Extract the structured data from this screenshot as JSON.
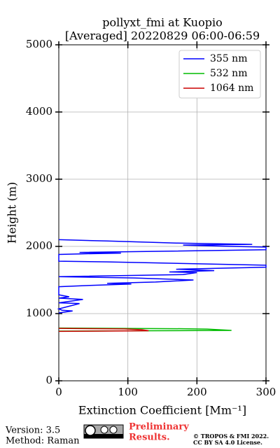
{
  "chart_data": {
    "type": "line",
    "title": "pollyxt_fmi at Kuopio",
    "subtitle": "[Averaged] 20220829 06:00-06:59",
    "xlabel": "Extinction Coefficient [Mm⁻¹]",
    "ylabel": "Height (m)",
    "xlim": [
      0,
      300
    ],
    "xticks": [
      0,
      100,
      200,
      300
    ],
    "ylim": [
      0,
      5000
    ],
    "yticks": [
      0,
      1000,
      2000,
      3000,
      4000,
      5000
    ],
    "grid": true,
    "legend": "upper right",
    "series": [
      {
        "name": "355 nm",
        "color": "#0000ff",
        "x": [
          0,
          20,
          5,
          0,
          30,
          0,
          35,
          0,
          15,
          0,
          0,
          45,
          105,
          70,
          140,
          195,
          110,
          0,
          180,
          200,
          160,
          225,
          170,
          300,
          300,
          70,
          0,
          0,
          35,
          90,
          30,
          300,
          300,
          250,
          180,
          280,
          170,
          70,
          0
        ],
        "y": [
          1010,
          1040,
          1050,
          1070,
          1150,
          1160,
          1210,
          1230,
          1250,
          1280,
          1400,
          1420,
          1440,
          1450,
          1470,
          1500,
          1530,
          1550,
          1580,
          1610,
          1620,
          1640,
          1660,
          1690,
          1720,
          1770,
          1780,
          1880,
          1890,
          1900,
          1910,
          1950,
          1990,
          2000,
          2020,
          2030,
          2050,
          2080,
          2100
        ]
      },
      {
        "name": "532 nm",
        "color": "#00bb00",
        "x": [
          0,
          180,
          215,
          250,
          135,
          0
        ],
        "y": [
          785,
          775,
          770,
          750,
          745,
          740
        ]
      },
      {
        "name": "1064 nm",
        "color": "#cc0000",
        "x": [
          0,
          95,
          120,
          130,
          0
        ],
        "y": [
          780,
          772,
          760,
          745,
          735
        ]
      }
    ]
  },
  "footer": {
    "version": "Version: 3.5",
    "method": "Method: Raman",
    "notice_line1": "Preliminary",
    "notice_line2": "Results.",
    "copyright": "© TROPOS & FMI 2022.",
    "license": "CC BY SA 4.0 License."
  }
}
